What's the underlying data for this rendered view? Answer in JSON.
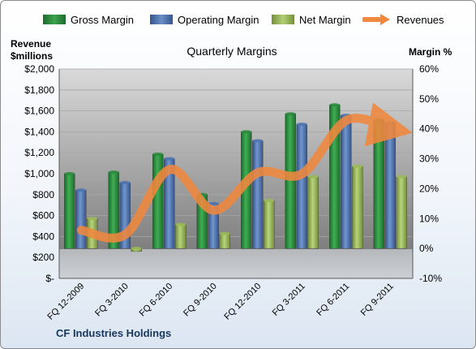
{
  "chart_data": {
    "type": "bar",
    "title": "Quarterly Margins",
    "ylabel_left": "Revenue $millions",
    "ylabel_right": "Margin %",
    "left_axis": {
      "ylim": [
        0,
        2000
      ],
      "step": 200,
      "tick_labels": [
        "$-",
        "$200",
        "$400",
        "$600",
        "$800",
        "$1,000",
        "$1,200",
        "$1,400",
        "$1,600",
        "$1,800",
        "$2,000"
      ]
    },
    "right_axis": {
      "ylim": [
        -10,
        60
      ],
      "step": 10,
      "tick_labels": [
        "-10%",
        "0%",
        "10%",
        "20%",
        "30%",
        "40%",
        "50%",
        "60%"
      ]
    },
    "categories": [
      "FQ 12-2009",
      "FQ 3-2010",
      "FQ 6-2010",
      "FQ 9-2010",
      "FQ 12-2010",
      "FQ 3-2011",
      "FQ 6-2011",
      "FQ 9-2011"
    ],
    "series": [
      {
        "name": "Gross Margin",
        "type": "bar",
        "axis": "right",
        "color": "#2e8b3f",
        "values": [
          25,
          25.5,
          31.5,
          18,
          39,
          45,
          48,
          43
        ]
      },
      {
        "name": "Operating Margin",
        "type": "bar",
        "axis": "right",
        "color": "#4f74b0",
        "values": [
          19.5,
          22,
          30,
          15,
          36,
          41.5,
          44.5,
          42
        ]
      },
      {
        "name": "Net Margin",
        "type": "bar",
        "axis": "right",
        "color": "#9bbb59",
        "values": [
          10,
          -1,
          8,
          5,
          16,
          24,
          27.5,
          24
        ]
      },
      {
        "name": "Revenues",
        "type": "line",
        "axis": "left",
        "color": "#f0883e",
        "values": [
          460,
          420,
          1040,
          650,
          1010,
          1000,
          1510,
          1430
        ]
      }
    ],
    "legend_position": "top",
    "grid": true
  },
  "footer": {
    "company": "CF Industries Holdings"
  }
}
